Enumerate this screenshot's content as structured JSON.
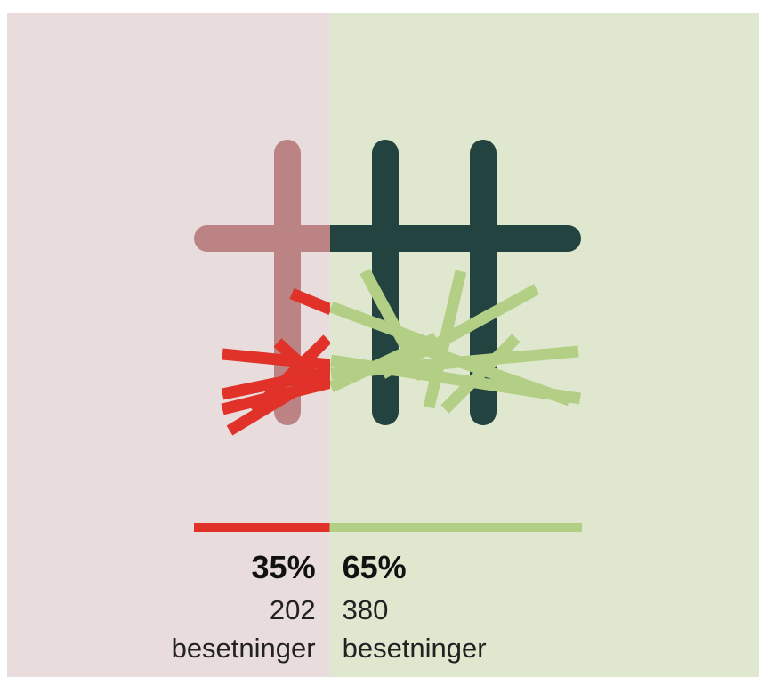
{
  "chart_data": {
    "type": "split-bar",
    "values": [
      35,
      65
    ],
    "value_labels": [
      "35%",
      "65%"
    ],
    "counts": [
      202,
      380
    ],
    "count_labels": [
      "besetninger",
      "besetninger"
    ],
    "colors": [
      "#e03228",
      "#b3cf85"
    ],
    "backgrounds": [
      "#e8dcdc",
      "#dfe8cf"
    ]
  }
}
